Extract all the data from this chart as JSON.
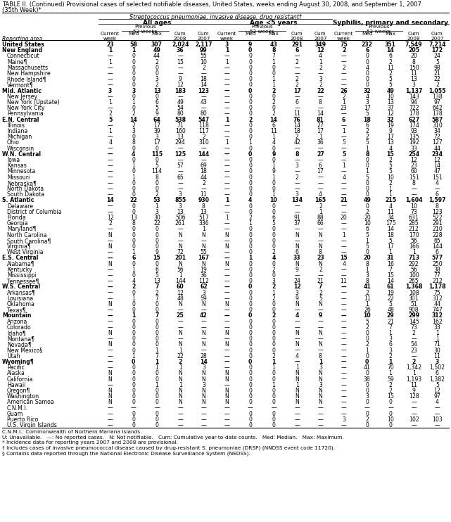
{
  "title_line1": "TABLE II. (Continued) Provisional cases of selected notifiable diseases, United States, weeks ending August 30, 2008, and September 1, 2007",
  "title_line2": "(35th Week)*",
  "section_header": "Streptococcus pneumoniae, invasive disease, drug resistant†",
  "subsection1": "All ages",
  "subsection2": "Age <5 years",
  "subsection3": "Syphilis, primary and secondary",
  "rows": [
    [
      "United States",
      "23",
      "58",
      "307",
      "2,024",
      "2,117",
      "3",
      "9",
      "43",
      "291",
      "349",
      "75",
      "232",
      "351",
      "7,549",
      "7,214"
    ],
    [
      "New England",
      "1",
      "1",
      "49",
      "36",
      "99",
      "1",
      "0",
      "8",
      "6",
      "12",
      "2",
      "6",
      "14",
      "205",
      "172"
    ],
    [
      "Connecticut",
      "—",
      "0",
      "44",
      "—",
      "55",
      "—",
      "0",
      "7",
      "—",
      "4",
      "—",
      "0",
      "6",
      "20",
      "24"
    ],
    [
      "Maine¶",
      "1",
      "0",
      "2",
      "15",
      "10",
      "1",
      "0",
      "1",
      "2",
      "1",
      "—",
      "0",
      "2",
      "8",
      "5"
    ],
    [
      "Massachusetts",
      "—",
      "0",
      "0",
      "—",
      "2",
      "—",
      "0",
      "0",
      "—",
      "2",
      "2",
      "4",
      "11",
      "150",
      "98"
    ],
    [
      "New Hampshire",
      "—",
      "0",
      "0",
      "—",
      "—",
      "—",
      "0",
      "0",
      "—",
      "—",
      "—",
      "0",
      "2",
      "11",
      "21"
    ],
    [
      "Rhode Island¶",
      "—",
      "0",
      "3",
      "9",
      "18",
      "—",
      "0",
      "1",
      "2",
      "3",
      "—",
      "0",
      "5",
      "13",
      "22"
    ],
    [
      "Vermont¶",
      "—",
      "0",
      "2",
      "12",
      "14",
      "—",
      "0",
      "1",
      "2",
      "2",
      "—",
      "0",
      "5",
      "3",
      "2"
    ],
    [
      "Mid. Atlantic",
      "3",
      "3",
      "13",
      "183",
      "123",
      "—",
      "0",
      "2",
      "17",
      "22",
      "26",
      "32",
      "49",
      "1,137",
      "1,055"
    ],
    [
      "New Jersey",
      "—",
      "0",
      "0",
      "—",
      "—",
      "—",
      "0",
      "0",
      "—",
      "—",
      "2",
      "4",
      "10",
      "143",
      "138"
    ],
    [
      "New York (Upstate)",
      "1",
      "1",
      "6",
      "49",
      "43",
      "—",
      "0",
      "2",
      "6",
      "8",
      "1",
      "3",
      "13",
      "94",
      "97"
    ],
    [
      "New York City",
      "—",
      "0",
      "5",
      "54",
      "—",
      "—",
      "0",
      "0",
      "—",
      "—",
      "23",
      "17",
      "37",
      "722",
      "642"
    ],
    [
      "Pennsylvania",
      "2",
      "2",
      "9",
      "80",
      "80",
      "—",
      "0",
      "2",
      "11",
      "14",
      "—",
      "5",
      "12",
      "178",
      "178"
    ],
    [
      "E.N. Central",
      "5",
      "14",
      "64",
      "538",
      "547",
      "1",
      "2",
      "14",
      "76",
      "81",
      "6",
      "18",
      "32",
      "627",
      "587"
    ],
    [
      "Illinois",
      "—",
      "2",
      "17",
      "71",
      "118",
      "—",
      "0",
      "6",
      "14",
      "27",
      "—",
      "6",
      "19",
      "174",
      "310"
    ],
    [
      "Indiana",
      "1",
      "3",
      "39",
      "160",
      "117",
      "—",
      "0",
      "11",
      "18",
      "17",
      "1",
      "2",
      "9",
      "93",
      "34"
    ],
    [
      "Michigan",
      "—",
      "0",
      "3",
      "13",
      "2",
      "—",
      "0",
      "1",
      "2",
      "1",
      "—",
      "2",
      "17",
      "135",
      "72"
    ],
    [
      "Ohio",
      "4",
      "8",
      "17",
      "294",
      "310",
      "1",
      "1",
      "4",
      "42",
      "36",
      "5",
      "5",
      "13",
      "192",
      "127"
    ],
    [
      "Wisconsin",
      "—",
      "0",
      "0",
      "—",
      "—",
      "—",
      "0",
      "0",
      "—",
      "—",
      "—",
      "1",
      "4",
      "33",
      "44"
    ],
    [
      "W.N. Central",
      "—",
      "4",
      "115",
      "125",
      "144",
      "—",
      "0",
      "9",
      "8",
      "27",
      "5",
      "8",
      "15",
      "254",
      "234"
    ],
    [
      "Iowa",
      "—",
      "0",
      "0",
      "—",
      "—",
      "—",
      "0",
      "0",
      "—",
      "—",
      "—",
      "0",
      "2",
      "12",
      "12"
    ],
    [
      "Kansas",
      "—",
      "1",
      "5",
      "57",
      "69",
      "—",
      "0",
      "1",
      "3",
      "6",
      "1",
      "0",
      "5",
      "23",
      "14"
    ],
    [
      "Minnesota",
      "—",
      "0",
      "114",
      "—",
      "18",
      "—",
      "0",
      "9",
      "—",
      "17",
      "—",
      "1",
      "5",
      "60",
      "47"
    ],
    [
      "Missouri",
      "—",
      "1",
      "8",
      "65",
      "44",
      "—",
      "0",
      "1",
      "2",
      "—",
      "4",
      "5",
      "10",
      "151",
      "151"
    ],
    [
      "Nebraska¶",
      "—",
      "0",
      "0",
      "—",
      "2",
      "—",
      "0",
      "0",
      "—",
      "—",
      "—",
      "0",
      "2",
      "8",
      "4"
    ],
    [
      "North Dakota",
      "—",
      "0",
      "0",
      "—",
      "—",
      "—",
      "0",
      "0",
      "—",
      "—",
      "—",
      "0",
      "1",
      "—",
      "—"
    ],
    [
      "South Dakota",
      "—",
      "0",
      "2",
      "3",
      "11",
      "—",
      "0",
      "1",
      "3",
      "4",
      "—",
      "0",
      "1",
      "—",
      "6"
    ],
    [
      "S. Atlantic",
      "14",
      "22",
      "53",
      "855",
      "930",
      "1",
      "4",
      "10",
      "134",
      "165",
      "21",
      "49",
      "215",
      "1,604",
      "1,597"
    ],
    [
      "Delaware",
      "—",
      "0",
      "1",
      "3",
      "8",
      "—",
      "0",
      "0",
      "—",
      "2",
      "—",
      "0",
      "4",
      "10",
      "8"
    ],
    [
      "District of Columbia",
      "—",
      "0",
      "3",
      "13",
      "13",
      "—",
      "0",
      "0",
      "—",
      "1",
      "—",
      "2",
      "11",
      "73",
      "123"
    ],
    [
      "Florida",
      "12",
      "13",
      "30",
      "506",
      "517",
      "1",
      "2",
      "6",
      "91",
      "88",
      "20",
      "20",
      "34",
      "631",
      "522"
    ],
    [
      "Georgia",
      "2",
      "8",
      "22",
      "261",
      "336",
      "—",
      "1",
      "5",
      "37",
      "66",
      "—",
      "10",
      "175",
      "285",
      "291"
    ],
    [
      "Maryland¶",
      "—",
      "0",
      "0",
      "—",
      "1",
      "—",
      "0",
      "0",
      "—",
      "—",
      "—",
      "6",
      "14",
      "212",
      "210"
    ],
    [
      "North Carolina",
      "N",
      "0",
      "0",
      "N",
      "N",
      "N",
      "0",
      "0",
      "N",
      "N",
      "1",
      "5",
      "18",
      "170",
      "228"
    ],
    [
      "South Carolina¶",
      "—",
      "0",
      "0",
      "—",
      "—",
      "—",
      "0",
      "0",
      "—",
      "—",
      "—",
      "1",
      "5",
      "56",
      "65"
    ],
    [
      "Virginia¶",
      "N",
      "0",
      "0",
      "N",
      "N",
      "N",
      "0",
      "0",
      "N",
      "N",
      "—",
      "5",
      "17",
      "166",
      "144"
    ],
    [
      "West Virginia",
      "—",
      "1",
      "9",
      "72",
      "55",
      "—",
      "0",
      "2",
      "6",
      "8",
      "—",
      "0",
      "1",
      "1",
      "6"
    ],
    [
      "E.S. Central",
      "—",
      "6",
      "15",
      "201",
      "167",
      "—",
      "1",
      "4",
      "33",
      "23",
      "15",
      "20",
      "31",
      "713",
      "577"
    ],
    [
      "Alabama¶",
      "N",
      "0",
      "0",
      "N",
      "N",
      "N",
      "0",
      "0",
      "N",
      "N",
      "4",
      "8",
      "16",
      "292",
      "250"
    ],
    [
      "Kentucky",
      "—",
      "1",
      "6",
      "56",
      "19",
      "—",
      "0",
      "2",
      "9",
      "2",
      "—",
      "1",
      "7",
      "56",
      "38"
    ],
    [
      "Mississippi",
      "—",
      "0",
      "5",
      "1",
      "36",
      "—",
      "0",
      "0",
      "—",
      "—",
      "—",
      "3",
      "15",
      "100",
      "77"
    ],
    [
      "Tennessee¶",
      "—",
      "4",
      "13",
      "144",
      "112",
      "—",
      "0",
      "3",
      "24",
      "21",
      "11",
      "8",
      "14",
      "265",
      "212"
    ],
    [
      "W.S. Central",
      "—",
      "2",
      "7",
      "60",
      "62",
      "—",
      "0",
      "2",
      "12",
      "7",
      "—",
      "41",
      "61",
      "1,368",
      "1,178"
    ],
    [
      "Arkansas¶",
      "—",
      "0",
      "2",
      "12",
      "3",
      "—",
      "0",
      "1",
      "3",
      "2",
      "—",
      "2",
      "19",
      "108",
      "75"
    ],
    [
      "Louisiana",
      "—",
      "1",
      "7",
      "48",
      "59",
      "—",
      "0",
      "2",
      "9",
      "5",
      "—",
      "11",
      "22",
      "301",
      "312"
    ],
    [
      "Oklahoma",
      "N",
      "0",
      "0",
      "N",
      "N",
      "N",
      "0",
      "0",
      "N",
      "N",
      "—",
      "1",
      "5",
      "51",
      "44"
    ],
    [
      "Texas¶",
      "—",
      "0",
      "0",
      "—",
      "—",
      "—",
      "0",
      "0",
      "—",
      "—",
      "—",
      "26",
      "48",
      "908",
      "747"
    ],
    [
      "Mountain",
      "—",
      "1",
      "7",
      "25",
      "42",
      "—",
      "0",
      "2",
      "4",
      "9",
      "—",
      "10",
      "29",
      "299",
      "312"
    ],
    [
      "Arizona",
      "—",
      "0",
      "0",
      "—",
      "—",
      "—",
      "0",
      "0",
      "—",
      "—",
      "—",
      "5",
      "21",
      "145",
      "162"
    ],
    [
      "Colorado",
      "—",
      "0",
      "0",
      "—",
      "—",
      "—",
      "0",
      "0",
      "—",
      "—",
      "—",
      "2",
      "7",
      "73",
      "33"
    ],
    [
      "Idaho¶",
      "N",
      "0",
      "0",
      "N",
      "N",
      "N",
      "0",
      "0",
      "N",
      "N",
      "—",
      "0",
      "1",
      "2",
      "1"
    ],
    [
      "Montana¶",
      "—",
      "0",
      "0",
      "—",
      "—",
      "—",
      "0",
      "0",
      "—",
      "—",
      "—",
      "0",
      "3",
      "—",
      "1"
    ],
    [
      "Nevada¶",
      "N",
      "0",
      "0",
      "N",
      "N",
      "N",
      "0",
      "0",
      "N",
      "N",
      "—",
      "2",
      "6",
      "54",
      "71"
    ],
    [
      "New Mexico§",
      "—",
      "0",
      "1",
      "1",
      "—",
      "—",
      "0",
      "0",
      "—",
      "—",
      "—",
      "1",
      "3",
      "23",
      "30"
    ],
    [
      "Utah",
      "—",
      "1",
      "7",
      "22",
      "28",
      "—",
      "0",
      "2",
      "4",
      "8",
      "—",
      "0",
      "2",
      "—",
      "11"
    ],
    [
      "Wyoming¶",
      "—",
      "0",
      "1",
      "2",
      "14",
      "—",
      "0",
      "1",
      "—",
      "1",
      "—",
      "0",
      "1",
      "2",
      "3"
    ],
    [
      "Pacific",
      "—",
      "0",
      "1",
      "1",
      "3",
      "—",
      "0",
      "1",
      "1",
      "3",
      "—",
      "41",
      "70",
      "1,342",
      "1,502"
    ],
    [
      "Alaska",
      "N",
      "0",
      "0",
      "N",
      "N",
      "N",
      "0",
      "0",
      "N",
      "N",
      "—",
      "0",
      "1",
      "1",
      "6"
    ],
    [
      "California",
      "N",
      "0",
      "0",
      "N",
      "N",
      "N",
      "0",
      "0",
      "N",
      "N",
      "—",
      "38",
      "59",
      "1,193",
      "1,382"
    ],
    [
      "Hawaii",
      "—",
      "0",
      "1",
      "1",
      "3",
      "—",
      "0",
      "1",
      "1",
      "3",
      "—",
      "0",
      "2",
      "11",
      "5"
    ],
    [
      "Oregon¶",
      "N",
      "0",
      "0",
      "N",
      "N",
      "N",
      "0",
      "0",
      "N",
      "N",
      "—",
      "0",
      "2",
      "9",
      "12"
    ],
    [
      "Washington",
      "N",
      "0",
      "0",
      "N",
      "N",
      "N",
      "0",
      "0",
      "N",
      "N",
      "—",
      "3",
      "15",
      "128",
      "97"
    ],
    [
      "American Samoa",
      "N",
      "0",
      "0",
      "N",
      "N",
      "N",
      "0",
      "0",
      "N",
      "N",
      "—",
      "0",
      "0",
      "—",
      "4"
    ],
    [
      "C.N.M.I.",
      "—",
      "—",
      "—",
      "—",
      "—",
      "—",
      "—",
      "—",
      "—",
      "—",
      "—",
      "—",
      "—",
      "—",
      "—"
    ],
    [
      "Guam",
      "—",
      "0",
      "0",
      "—",
      "—",
      "—",
      "0",
      "0",
      "—",
      "—",
      "—",
      "0",
      "0",
      "—",
      "—"
    ],
    [
      "Puerto Rico",
      "—",
      "0",
      "0",
      "—",
      "—",
      "—",
      "0",
      "0",
      "—",
      "—",
      "3",
      "2",
      "10",
      "102",
      "103"
    ],
    [
      "U.S. Virgin Islands",
      "—",
      "0",
      "0",
      "—",
      "—",
      "—",
      "0",
      "0",
      "—",
      "—",
      "—",
      "0",
      "0",
      "—",
      "—"
    ]
  ],
  "bold_rows": [
    0,
    1,
    8,
    13,
    19,
    27,
    37,
    42,
    47,
    55
  ],
  "footnotes": [
    "C.N.M.I.: Commonwealth of Northern Mariana Islands.",
    "U: Unavailable.   —: No reported cases.   N: Not notifiable.   Cum: Cumulative year-to-date counts.   Med: Median.   Max: Maximum.",
    "* Incidence data for reporting years 2007 and 2008 are provisional.",
    "† Includes cases of invasive pneumococcal disease caused by drug-resistant S. pneumoniae (DRSP) (NNDSS event code 11720).",
    "§ Contains data reported through the National Electronic Disease Surveillance System (NEDSS)."
  ]
}
